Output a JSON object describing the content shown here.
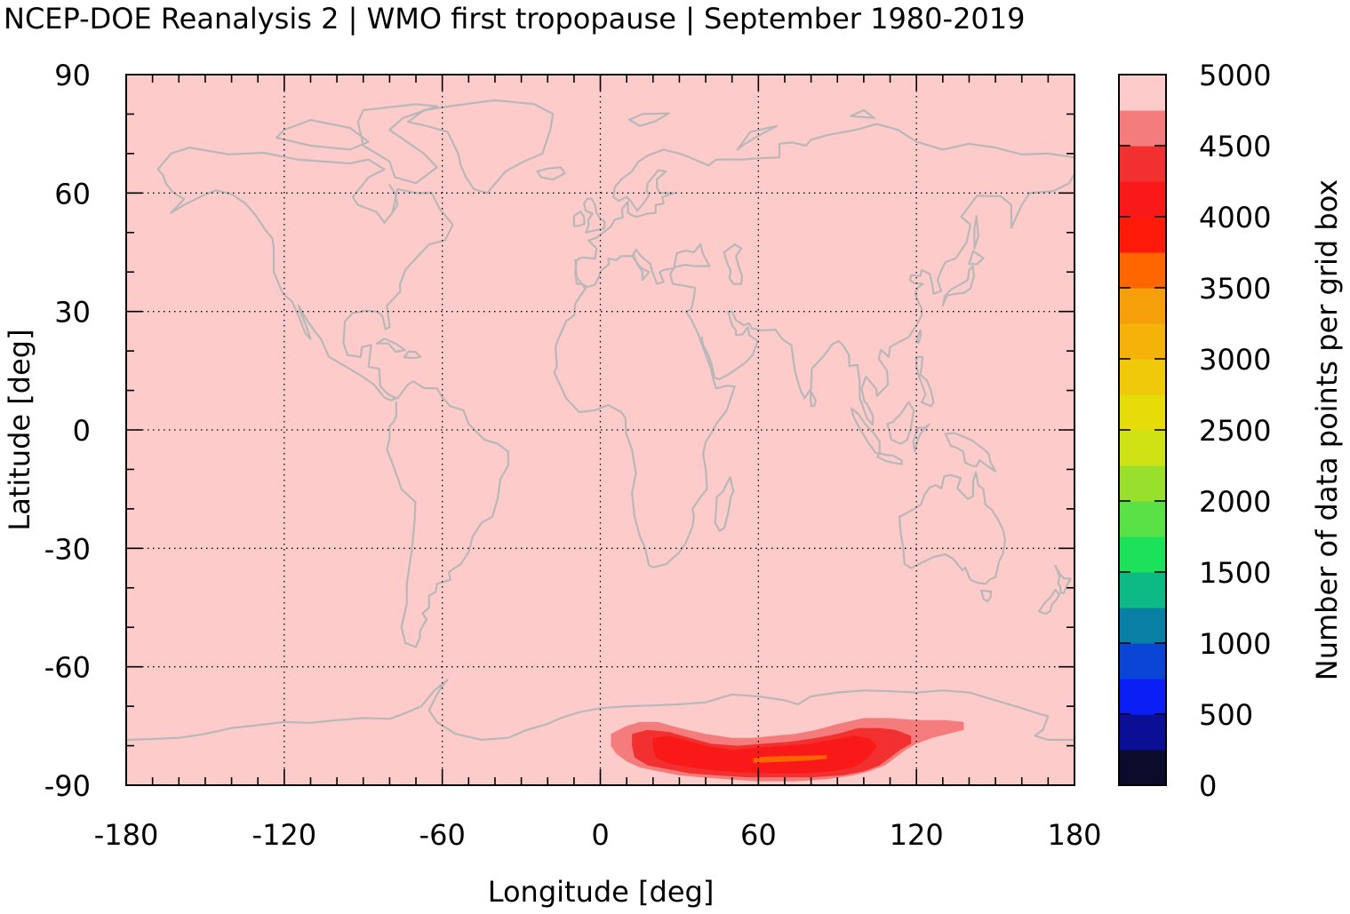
{
  "chart_data": {
    "type": "heatmap",
    "title": "NCEP-DOE Reanalysis 2 | WMO first tropopause | September 1980-2019",
    "xlabel": "Longitude [deg]",
    "ylabel": "Latitude [deg]",
    "colorbar_label": "Number of data points per grid box",
    "xlim": [
      -180,
      180
    ],
    "ylim": [
      -90,
      90
    ],
    "xticks": [
      -180,
      -120,
      -60,
      0,
      60,
      120,
      180
    ],
    "yticks": [
      90,
      60,
      30,
      0,
      -30,
      -60,
      -90
    ],
    "xtick_labels": [
      "-180",
      "-120",
      "-60",
      "0",
      "60",
      "120",
      "180"
    ],
    "ytick_labels": [
      "90",
      "60",
      "30",
      "0",
      "-30",
      "-60",
      "-90"
    ],
    "grid": true,
    "background_value": 5000,
    "colorbar": {
      "range": [
        0,
        5000
      ],
      "tick_labels": [
        "5000",
        "4500",
        "4000",
        "3500",
        "3000",
        "2500",
        "2000",
        "1500",
        "1000",
        "500",
        "0"
      ],
      "ticks": [
        5000,
        4500,
        4000,
        3500,
        3000,
        2500,
        2000,
        1500,
        1000,
        500,
        0
      ],
      "colors": [
        "#0b0b2b",
        "#0a0f96",
        "#0b1ef5",
        "#0b45d6",
        "#0a7fa5",
        "#0dba86",
        "#1be25a",
        "#59e145",
        "#98e02c",
        "#cfe214",
        "#e6dc0a",
        "#f0c90a",
        "#f5b30a",
        "#f5a00a",
        "#ff6600",
        "#ff1a0a",
        "#fa1919",
        "#f23030",
        "#f47c7c",
        "#fecbcb"
      ]
    },
    "regions": [
      {
        "value": 4600,
        "lon": [
          4,
          138
        ],
        "lat": [
          -90,
          -73
        ],
        "shape": "outer"
      },
      {
        "value": 4300,
        "lon": [
          12,
          118
        ],
        "lat": [
          -88,
          -75
        ],
        "shape": "mid"
      },
      {
        "value": 4100,
        "lon": [
          20,
          105
        ],
        "lat": [
          -87,
          -77
        ],
        "shape": "inner"
      },
      {
        "value": 3500,
        "lon": [
          58,
          86
        ],
        "lat": [
          -84.5,
          -82.5
        ],
        "shape": "core"
      }
    ]
  },
  "map": {
    "coastline_color": "#b8b8b8",
    "background_color": "#fecbcb"
  }
}
